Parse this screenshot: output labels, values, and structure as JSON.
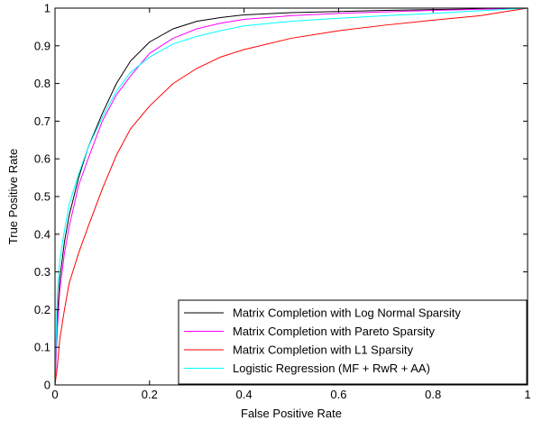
{
  "chart_data": {
    "type": "line",
    "xlabel": "False Positive Rate",
    "ylabel": "True Positive Rate",
    "xlim": [
      0,
      1
    ],
    "ylim": [
      0,
      1
    ],
    "xticks": [
      "0",
      "0.2",
      "0.4",
      "0.6",
      "0.8",
      "1"
    ],
    "yticks": [
      "0",
      "0.1",
      "0.2",
      "0.3",
      "0.4",
      "0.5",
      "0.6",
      "0.7",
      "0.8",
      "0.9",
      "1"
    ],
    "grid": false,
    "legend_position": "bottom-right",
    "series": [
      {
        "name": "Matrix Completion with Log Normal Sparsity",
        "color": "#000000",
        "x": [
          0,
          0.005,
          0.01,
          0.02,
          0.03,
          0.05,
          0.07,
          0.1,
          0.13,
          0.16,
          0.2,
          0.25,
          0.3,
          0.35,
          0.4,
          0.5,
          0.6,
          0.7,
          0.8,
          0.9,
          1.0
        ],
        "y": [
          0,
          0.18,
          0.28,
          0.38,
          0.45,
          0.55,
          0.63,
          0.72,
          0.8,
          0.86,
          0.91,
          0.945,
          0.965,
          0.975,
          0.982,
          0.988,
          0.991,
          0.994,
          0.996,
          0.998,
          1.0
        ]
      },
      {
        "name": "Matrix Completion with Pareto Sparsity",
        "color": "#ff00ff",
        "x": [
          0,
          0.005,
          0.01,
          0.02,
          0.03,
          0.05,
          0.07,
          0.1,
          0.13,
          0.16,
          0.2,
          0.25,
          0.3,
          0.35,
          0.4,
          0.5,
          0.6,
          0.7,
          0.8,
          0.9,
          1.0
        ],
        "y": [
          0,
          0.15,
          0.25,
          0.35,
          0.42,
          0.53,
          0.6,
          0.7,
          0.77,
          0.82,
          0.88,
          0.92,
          0.945,
          0.96,
          0.97,
          0.98,
          0.986,
          0.99,
          0.994,
          0.997,
          1.0
        ]
      },
      {
        "name": "Matrix Completion with L1 Sparsity",
        "color": "#ff0000",
        "x": [
          0,
          0.005,
          0.01,
          0.02,
          0.03,
          0.05,
          0.07,
          0.1,
          0.13,
          0.16,
          0.2,
          0.25,
          0.3,
          0.35,
          0.4,
          0.5,
          0.6,
          0.7,
          0.8,
          0.9,
          0.95,
          1.0
        ],
        "y": [
          0,
          0.05,
          0.12,
          0.2,
          0.27,
          0.35,
          0.42,
          0.52,
          0.61,
          0.68,
          0.74,
          0.8,
          0.84,
          0.87,
          0.89,
          0.92,
          0.94,
          0.955,
          0.968,
          0.98,
          0.99,
          1.0
        ]
      },
      {
        "name": "Logistic Regression (MF + RwR + AA)",
        "color": "#00ffff",
        "x": [
          0,
          0.005,
          0.01,
          0.02,
          0.03,
          0.05,
          0.07,
          0.1,
          0.13,
          0.16,
          0.2,
          0.25,
          0.3,
          0.35,
          0.4,
          0.5,
          0.6,
          0.7,
          0.8,
          0.9,
          1.0
        ],
        "y": [
          0,
          0.25,
          0.33,
          0.41,
          0.48,
          0.56,
          0.63,
          0.71,
          0.78,
          0.83,
          0.87,
          0.905,
          0.925,
          0.94,
          0.953,
          0.965,
          0.973,
          0.98,
          0.986,
          0.993,
          1.0
        ]
      }
    ]
  }
}
